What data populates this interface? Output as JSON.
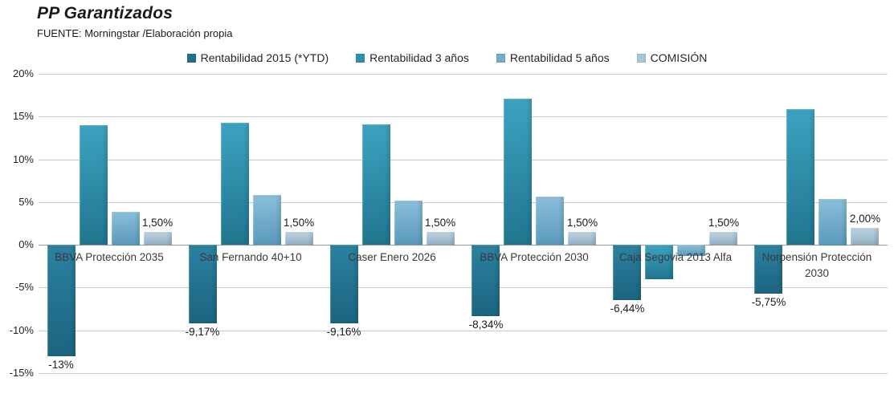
{
  "header": {
    "title": "PP Garantizados",
    "subtitle": "FUENTE: Morningstar /Elaboración propia"
  },
  "chart_data": {
    "type": "bar",
    "title": "PP Garantizados",
    "source": "FUENTE: Morningstar /Elaboración propia",
    "categories": [
      "BBVA Protección 2035",
      "San Fernando 40+10",
      "Caser Enero 2026",
      "BBVA Protección 2030",
      "Caja Segovia 2013 Alfa",
      "Norpensión Protección 2030"
    ],
    "series": [
      {
        "name": "Rentabilidad 2015 (*YTD)",
        "color": "#20718F",
        "color_top": "#2B81A1",
        "color_bottom": "#1C6480",
        "values": [
          -13.0,
          -9.17,
          -9.16,
          -8.34,
          -6.44,
          -5.75
        ],
        "labels": [
          "-13%",
          "-9,17%",
          "-9,16%",
          "-8,34%",
          "-6,44%",
          "-5,75%"
        ]
      },
      {
        "name": "Rentabilidad 3 años",
        "color": "#2E8FB0",
        "color_top": "#3BA3C0",
        "color_bottom": "#21758F",
        "values": [
          14.0,
          14.3,
          14.05,
          17.1,
          -4.0,
          15.9
        ],
        "labels": [
          null,
          null,
          null,
          null,
          null,
          null
        ]
      },
      {
        "name": "Rentabilidad 5 años",
        "color": "#74ADCB",
        "color_top": "#8ABFD9",
        "color_bottom": "#5B99BC",
        "values": [
          3.9,
          5.85,
          5.15,
          5.65,
          -1.3,
          5.4
        ],
        "labels": [
          null,
          null,
          null,
          null,
          null,
          null
        ]
      },
      {
        "name": "COMISIÓN",
        "color": "#A9C4D5",
        "color_top": "#BED3E0",
        "color_bottom": "#92B2C6",
        "values": [
          1.5,
          1.5,
          1.5,
          1.5,
          1.5,
          2.0
        ],
        "labels": [
          "1,50%",
          "1,50%",
          "1,50%",
          "1,50%",
          "1,50%",
          "2,00%"
        ]
      }
    ],
    "y_axis": {
      "min": -15,
      "max": 20,
      "step": 5,
      "tick_labels": [
        "20%",
        "15%",
        "10%",
        "5%",
        "0%",
        "-5%",
        "-10%",
        "-15%"
      ],
      "tick_values": [
        20,
        15,
        10,
        5,
        0,
        -5,
        -10,
        -15
      ]
    },
    "legend_position": "top",
    "grid": true
  }
}
